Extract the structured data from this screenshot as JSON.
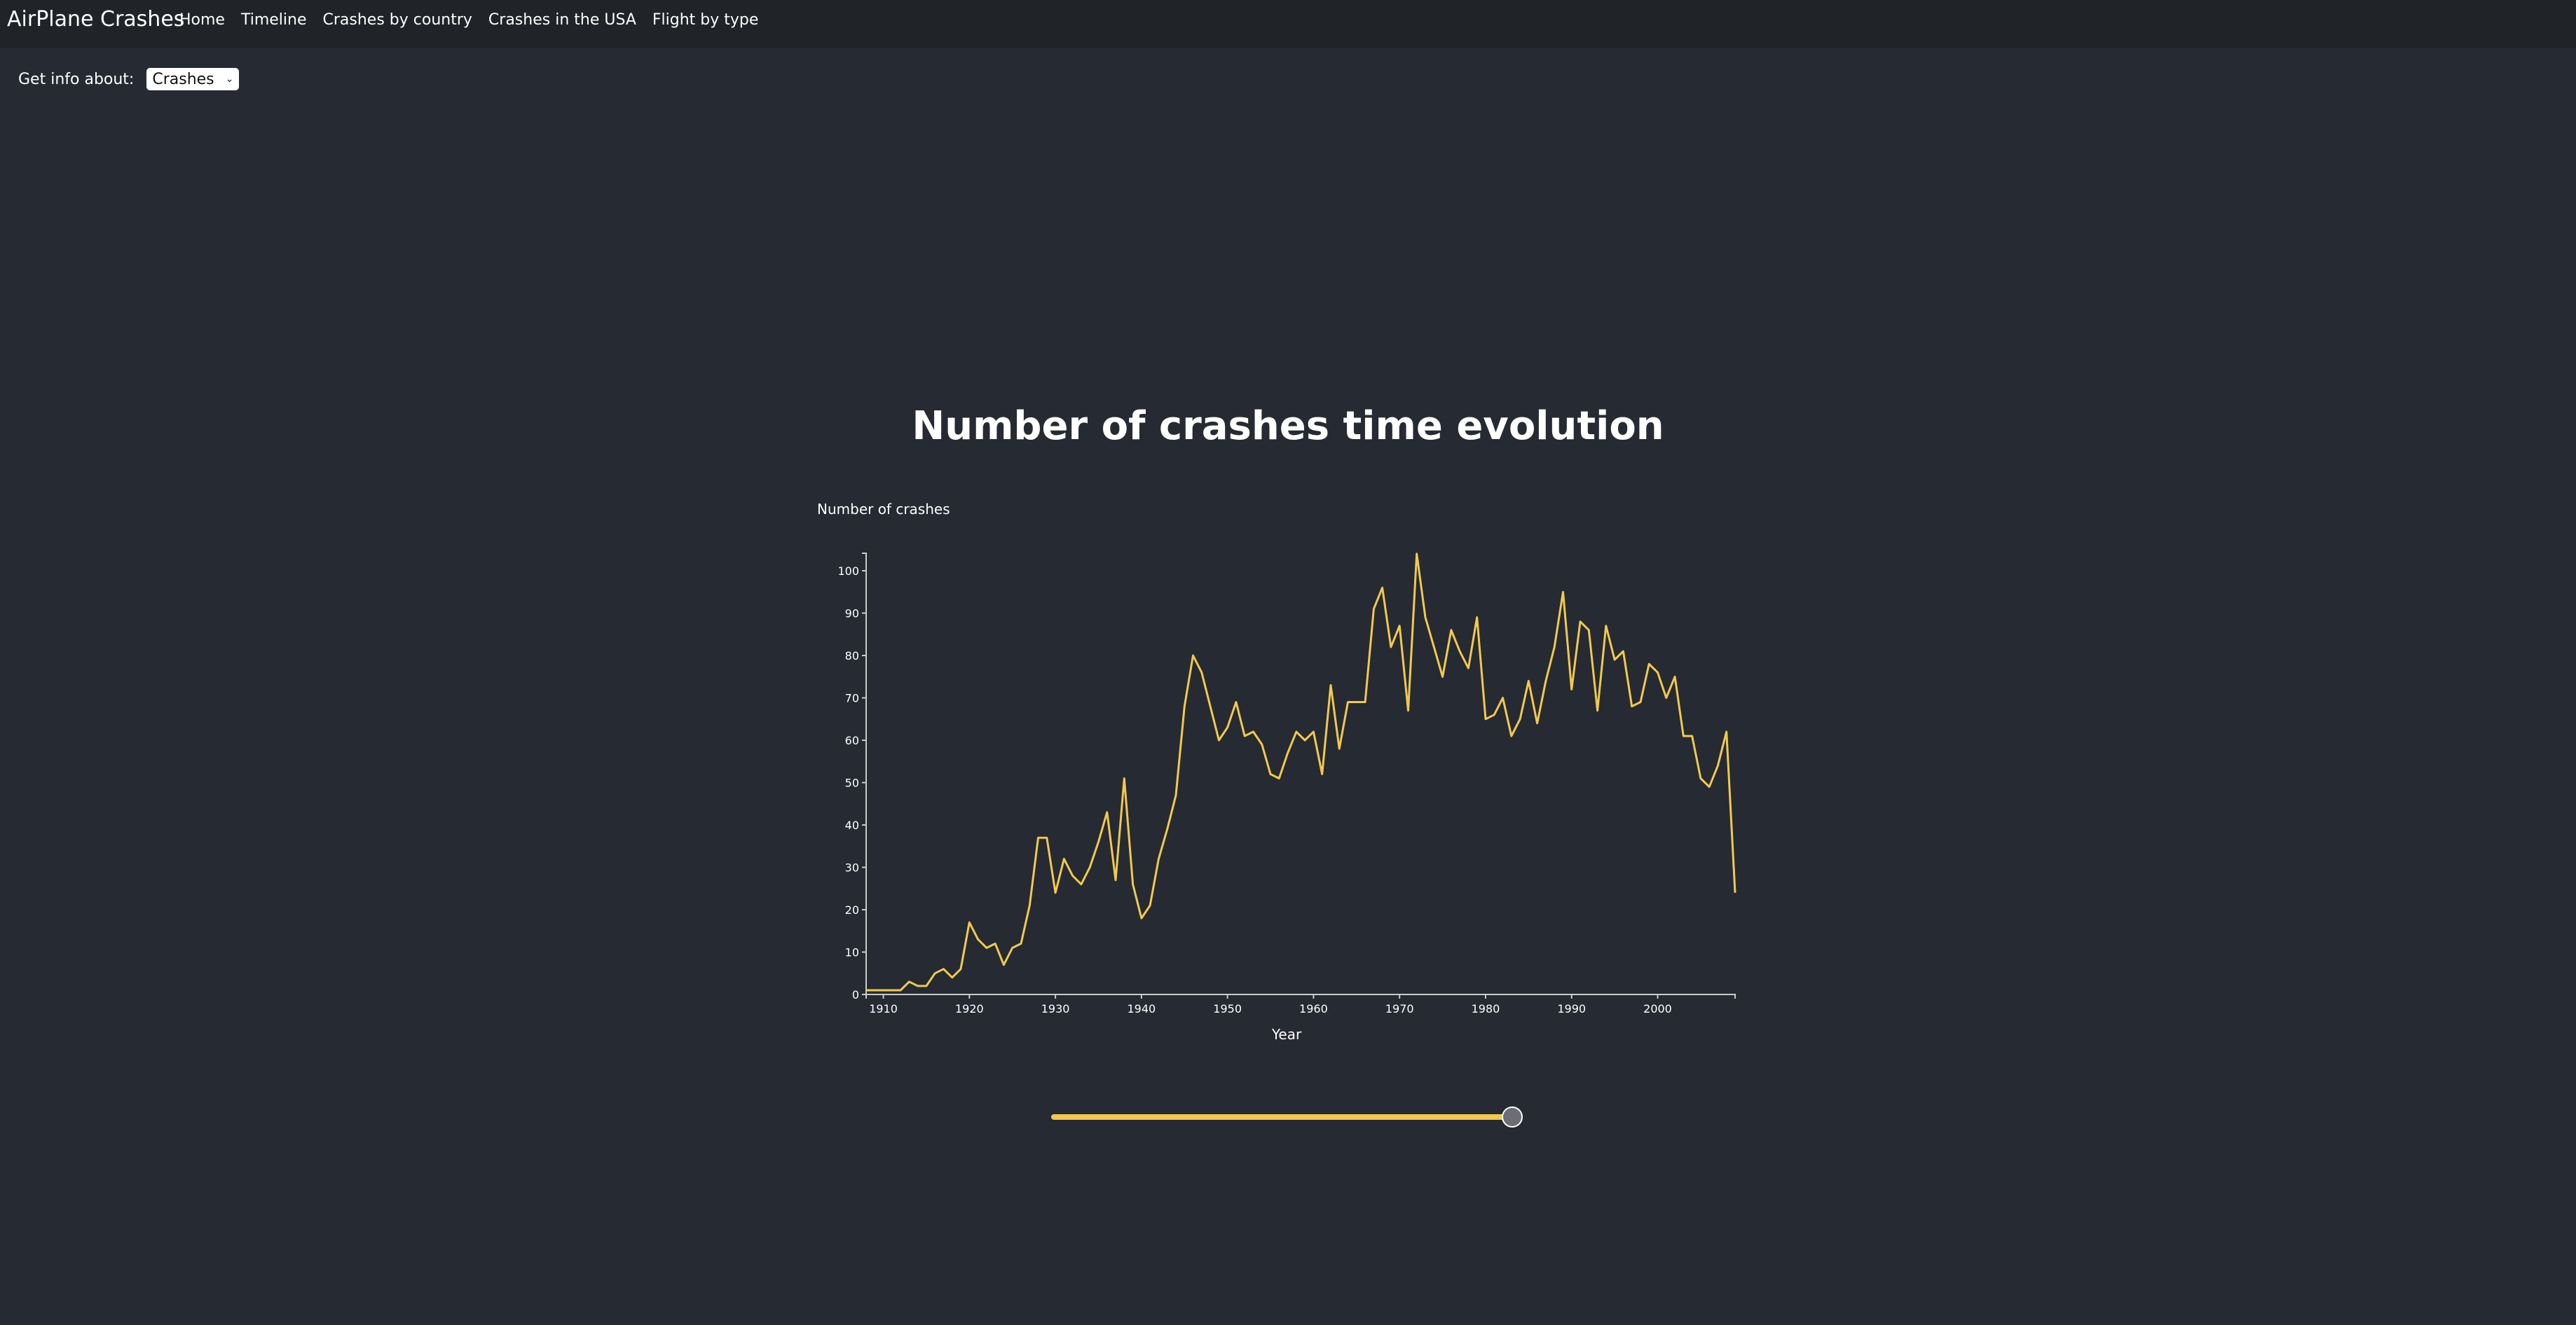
{
  "navbar": {
    "brand": "AirPlane Crashes",
    "links": [
      "Home",
      "Timeline",
      "Crashes by country",
      "Crashes in the USA",
      "Flight by type"
    ]
  },
  "controls": {
    "info_label": "Get info about:",
    "selected": "Crashes"
  },
  "slider": {
    "value_fraction": 1.0
  },
  "colors": {
    "background": "#252a33",
    "navbar": "#202327",
    "line": "#f2c94c",
    "axis": "#cccccc"
  },
  "chart_data": {
    "type": "line",
    "title": "Number of crashes time evolution",
    "ylabel": "Number of crashes",
    "xlabel": "Year",
    "xlim": [
      1908,
      2009
    ],
    "ylim": [
      0,
      100
    ],
    "xticks": [
      1910,
      1920,
      1930,
      1940,
      1950,
      1960,
      1970,
      1980,
      1990,
      2000
    ],
    "yticks": [
      0,
      10,
      20,
      30,
      40,
      50,
      60,
      70,
      80,
      90,
      100
    ],
    "series": [
      {
        "x": [
          1908,
          1909,
          1910,
          1911,
          1912,
          1913,
          1914,
          1915,
          1916,
          1917,
          1918,
          1919,
          1920,
          1921,
          1922,
          1923,
          1924,
          1925,
          1926,
          1927,
          1928,
          1929,
          1930,
          1931,
          1932,
          1933,
          1934,
          1935,
          1936,
          1937,
          1938,
          1939,
          1940,
          1941,
          1942,
          1943,
          1944,
          1945,
          1946,
          1947,
          1948,
          1949,
          1950,
          1951,
          1952,
          1953,
          1954,
          1955,
          1956,
          1957,
          1958,
          1959,
          1960,
          1961,
          1962,
          1963,
          1964,
          1965,
          1966,
          1967,
          1968,
          1969,
          1970,
          1971,
          1972,
          1973,
          1974,
          1975,
          1976,
          1977,
          1978,
          1979,
          1980,
          1981,
          1982,
          1983,
          1984,
          1985,
          1986,
          1987,
          1988,
          1989,
          1990,
          1991,
          1992,
          1993,
          1994,
          1995,
          1996,
          1997,
          1998,
          1999,
          2000,
          2001,
          2002,
          2003,
          2004,
          2005,
          2006,
          2007,
          2008,
          2009
        ],
        "y": [
          1,
          1,
          1,
          1,
          1,
          3,
          2,
          2,
          5,
          6,
          4,
          6,
          17,
          13,
          11,
          12,
          7,
          11,
          12,
          21,
          37,
          37,
          24,
          32,
          28,
          26,
          30,
          36,
          43,
          27,
          51,
          26,
          18,
          21,
          32,
          39,
          47,
          68,
          80,
          76,
          68,
          60,
          63,
          69,
          61,
          62,
          59,
          52,
          51,
          57,
          62,
          60,
          62,
          52,
          73,
          58,
          69,
          69,
          69,
          91,
          96,
          82,
          87,
          67,
          104,
          89,
          82,
          75,
          86,
          81,
          77,
          89,
          65,
          66,
          70,
          61,
          65,
          74,
          64,
          74,
          82,
          95,
          72,
          88,
          86,
          67,
          87,
          79,
          81,
          68,
          69,
          78,
          76,
          70,
          75,
          61,
          61,
          51,
          49,
          54,
          62,
          24
        ]
      }
    ]
  }
}
